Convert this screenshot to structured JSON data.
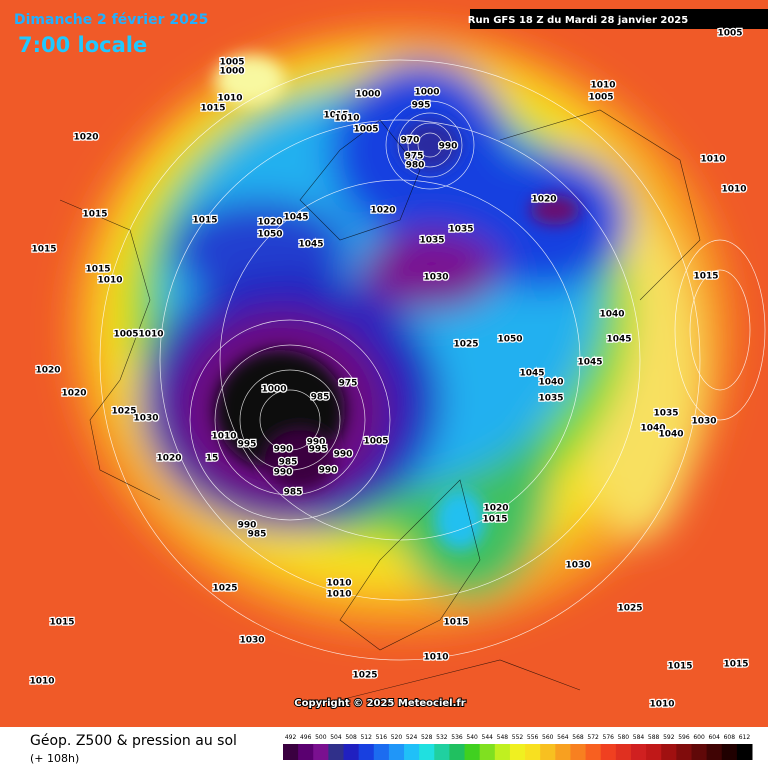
{
  "header": {
    "date": "Dimanche 2 février 2025",
    "time": "7:00 locale",
    "run": "Run GFS 18 Z du Mardi 28 janvier 2025"
  },
  "map": {
    "pressure_labels": [
      "1005",
      "1000",
      "1010",
      "1015",
      "1020",
      "1000",
      "1000",
      "995",
      "1015",
      "1010",
      "1005",
      "970",
      "990",
      "975",
      "980",
      "1005",
      "1010",
      "1005",
      "1010",
      "1010",
      "1020",
      "1015",
      "1015",
      "1020",
      "1045",
      "1050",
      "1045",
      "1020",
      "1035",
      "1035",
      "1015",
      "1015",
      "1010",
      "1030",
      "1015",
      "1040",
      "1005",
      "1010",
      "1025",
      "1050",
      "1045",
      "1020",
      "1045",
      "1045",
      "1040",
      "1000",
      "975",
      "985",
      "1020",
      "1035",
      "1025",
      "1030",
      "1010",
      "995",
      "990",
      "995",
      "1005",
      "990",
      "990",
      "985",
      "990",
      "990",
      "1020",
      "15",
      "985",
      "1035",
      "1030",
      "1040",
      "1040",
      "1020",
      "1015",
      "990",
      "985",
      "1030",
      "1010",
      "1010",
      "1025",
      "1025",
      "1015",
      "1015",
      "1030",
      "1010",
      "1015",
      "1015",
      "1025",
      "1010",
      "1010"
    ],
    "copyright": "Copyright © 2025 Meteociel.fr"
  },
  "footer": {
    "title": "Géop. Z500 & pression au sol",
    "lead": "(+ 108h)",
    "scale": [
      492,
      496,
      500,
      504,
      508,
      512,
      516,
      520,
      524,
      528,
      532,
      536,
      540,
      544,
      548,
      552,
      556,
      560,
      564,
      568,
      572,
      576,
      580,
      584,
      588,
      592,
      596,
      600,
      604,
      608,
      612
    ],
    "scale_colors": [
      "#3a0040",
      "#5a0070",
      "#7a1090",
      "#30308a",
      "#2020c0",
      "#1840e0",
      "#1c6cf0",
      "#2096f8",
      "#20c0f8",
      "#20e0e0",
      "#20d0a0",
      "#20c060",
      "#40d020",
      "#80e020",
      "#c0f020",
      "#f0f020",
      "#f8e020",
      "#f8c020",
      "#f8a020",
      "#f88020",
      "#f86020",
      "#f04020",
      "#e03020",
      "#d02020",
      "#c01818",
      "#a01010",
      "#800c0c",
      "#600808",
      "#400404",
      "#200000",
      "#000000"
    ]
  }
}
